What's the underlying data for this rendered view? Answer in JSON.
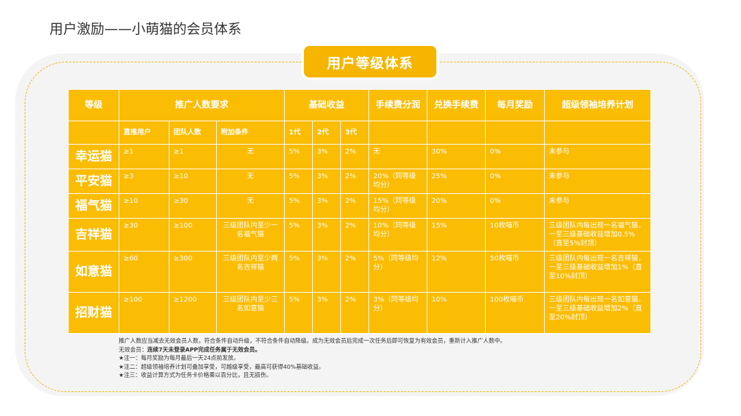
{
  "page_title": "用户激励——小萌猫的会员体系",
  "banner": "用户等级体系",
  "header1": {
    "level": "等级",
    "promotion": "推广人数要求",
    "basic": "基础收益",
    "fee_share": "手续费分润",
    "exchange_fee": "兑换手续费",
    "monthly": "每月奖励",
    "leader_plan": "超级领袖培养计划"
  },
  "header2": {
    "direct": "直推用户",
    "team": "团队人数",
    "extra": "附加条件",
    "gen1": "1代",
    "gen2": "2代",
    "gen3": "3代"
  },
  "rows": [
    {
      "level": "幸运猫",
      "direct": "≥1",
      "team": "≥1",
      "extra": "无",
      "g1": "5%",
      "g2": "3%",
      "g3": "2%",
      "fee_share": "无",
      "exchange_fee": "30%",
      "monthly": "0%",
      "plan": "未参与"
    },
    {
      "level": "平安猫",
      "direct": "≥3",
      "team": "≥10",
      "extra": "无",
      "g1": "5%",
      "g2": "3%",
      "g3": "2%",
      "fee_share": "20%（同等级均分）",
      "exchange_fee": "25%",
      "monthly": "0%",
      "plan": "未参与"
    },
    {
      "level": "福气猫",
      "direct": "≥10",
      "team": "≥30",
      "extra": "无",
      "g1": "5%",
      "g2": "3%",
      "g3": "2%",
      "fee_share": "15%（同等级均分）",
      "exchange_fee": "20%",
      "monthly": "0%",
      "plan": "未参与"
    },
    {
      "level": "吉祥猫",
      "direct": "≥30",
      "team": "≥100",
      "extra": "三级团队内至少一名福气猫",
      "g1": "5%",
      "g2": "3%",
      "g3": "2%",
      "fee_share": "10%（同等级均分）",
      "exchange_fee": "15%",
      "monthly": "10枚喵币",
      "plan": "三级团队内每出现一名福气猫，一至三级基础收益增加0.5%（直至5%封顶）"
    },
    {
      "level": "如意猫",
      "direct": "≥60",
      "team": "≥300",
      "extra": "三级团队内至少两名吉祥猫",
      "g1": "5%",
      "g2": "3%",
      "g3": "2%",
      "fee_share": "5%（同等级均分）",
      "exchange_fee": "12%",
      "monthly": "50枚喵币",
      "plan": "三级团队内每出现一名吉祥猫，一至三级基础收益增加1%（直至10%封顶）"
    },
    {
      "level": "招财猫",
      "direct": "≥100",
      "team": "≥1200",
      "extra": "三级团队内至少三名如意猫",
      "g1": "5%",
      "g2": "3%",
      "g3": "2%",
      "fee_share": "3%（同等级均分）",
      "exchange_fee": "10%",
      "monthly": "100枚喵币",
      "plan": "三级团队内每出现一名如意猫，一至三级基础收益增加2%（直至20%封顶）"
    }
  ],
  "notes": {
    "line1": "推广人数应当减去无效会员人数，符合条件自动升级，不符合条件自动降级。成为无效会员后完成一次任务后即可恢复为有效会员，重新计入推广人数中。",
    "line2_prefix": "无效会员：",
    "line2_bold": "连续7天未登录APP完成任务属于无效会员。",
    "line3": "★注一：每月奖励为每月最后一天24点前发放。",
    "line4": "★注二：超级领袖培养计划可叠加享受，可越级享受，最高可获得40%基础收益。",
    "line5": "★注三：收益计算方式为任务卡价格乘以百分比，且无损伤。"
  }
}
